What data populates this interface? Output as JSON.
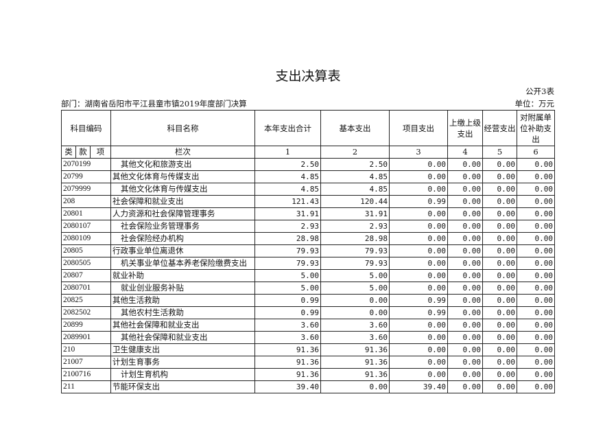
{
  "title": "支出决算表",
  "table_no": "公开3表",
  "department": "部门：湖南省岳阳市平江县童市镇2019年度部门决算",
  "unit": "单位：万元",
  "headers": {
    "code": "科目编码",
    "name": "科目名称",
    "total": "本年支出合计",
    "basic": "基本支出",
    "project": "项目支出",
    "upper": "上缴上级支出",
    "business": "经营支出",
    "subsidy": "对附属单位补助支出"
  },
  "sub_headers": {
    "lei": "类",
    "kuan": "款",
    "xiang": "项",
    "lanci": "栏次",
    "c1": "1",
    "c2": "2",
    "c3": "3",
    "c4": "4",
    "c5": "5",
    "c6": "6"
  },
  "rows": [
    {
      "code": "2070199",
      "name": "其他文化和旅游支出",
      "indent": true,
      "v": [
        "2.50",
        "2.50",
        "0.00",
        "0.00",
        "0.00",
        "0.00"
      ]
    },
    {
      "code": "20799",
      "name": "其他文化体育与传媒支出",
      "indent": false,
      "v": [
        "4.85",
        "4.85",
        "0.00",
        "0.00",
        "0.00",
        "0.00"
      ]
    },
    {
      "code": "2079999",
      "name": "其他文化体育与传媒支出",
      "indent": true,
      "v": [
        "4.85",
        "4.85",
        "0.00",
        "0.00",
        "0.00",
        "0.00"
      ]
    },
    {
      "code": "208",
      "name": "社会保障和就业支出",
      "indent": false,
      "v": [
        "121.43",
        "120.44",
        "0.99",
        "0.00",
        "0.00",
        "0.00"
      ]
    },
    {
      "code": "20801",
      "name": "人力资源和社会保障管理事务",
      "indent": false,
      "v": [
        "31.91",
        "31.91",
        "0.00",
        "0.00",
        "0.00",
        "0.00"
      ]
    },
    {
      "code": "2080107",
      "name": "社会保险业务管理事务",
      "indent": true,
      "v": [
        "2.93",
        "2.93",
        "0.00",
        "0.00",
        "0.00",
        "0.00"
      ]
    },
    {
      "code": "2080109",
      "name": "社会保险经办机构",
      "indent": true,
      "v": [
        "28.98",
        "28.98",
        "0.00",
        "0.00",
        "0.00",
        "0.00"
      ]
    },
    {
      "code": "20805",
      "name": "行政事业单位离退休",
      "indent": false,
      "v": [
        "79.93",
        "79.93",
        "0.00",
        "0.00",
        "0.00",
        "0.00"
      ]
    },
    {
      "code": "2080505",
      "name": "机关事业单位基本养老保险缴费支出",
      "indent": true,
      "v": [
        "79.93",
        "79.93",
        "0.00",
        "0.00",
        "0.00",
        "0.00"
      ]
    },
    {
      "code": "20807",
      "name": "就业补助",
      "indent": false,
      "v": [
        "5.00",
        "5.00",
        "0.00",
        "0.00",
        "0.00",
        "0.00"
      ]
    },
    {
      "code": "2080701",
      "name": "就业创业服务补贴",
      "indent": true,
      "v": [
        "5.00",
        "5.00",
        "0.00",
        "0.00",
        "0.00",
        "0.00"
      ]
    },
    {
      "code": "20825",
      "name": "其他生活救助",
      "indent": false,
      "v": [
        "0.99",
        "0.00",
        "0.99",
        "0.00",
        "0.00",
        "0.00"
      ]
    },
    {
      "code": "2082502",
      "name": "其他农村生活救助",
      "indent": true,
      "v": [
        "0.99",
        "0.00",
        "0.99",
        "0.00",
        "0.00",
        "0.00"
      ]
    },
    {
      "code": "20899",
      "name": "其他社会保障和就业支出",
      "indent": false,
      "v": [
        "3.60",
        "3.60",
        "0.00",
        "0.00",
        "0.00",
        "0.00"
      ]
    },
    {
      "code": "2089901",
      "name": "其他社会保障和就业支出",
      "indent": true,
      "v": [
        "3.60",
        "3.60",
        "0.00",
        "0.00",
        "0.00",
        "0.00"
      ]
    },
    {
      "code": "210",
      "name": "卫生健康支出",
      "indent": false,
      "v": [
        "91.36",
        "91.36",
        "0.00",
        "0.00",
        "0.00",
        "0.00"
      ]
    },
    {
      "code": "21007",
      "name": "计划生育事务",
      "indent": false,
      "v": [
        "91.36",
        "91.36",
        "0.00",
        "0.00",
        "0.00",
        "0.00"
      ]
    },
    {
      "code": "2100716",
      "name": "计划生育机构",
      "indent": true,
      "v": [
        "91.36",
        "91.36",
        "0.00",
        "0.00",
        "0.00",
        "0.00"
      ]
    },
    {
      "code": "211",
      "name": "节能环保支出",
      "indent": false,
      "v": [
        "39.40",
        "0.00",
        "39.40",
        "0.00",
        "0.00",
        "0.00"
      ]
    }
  ]
}
